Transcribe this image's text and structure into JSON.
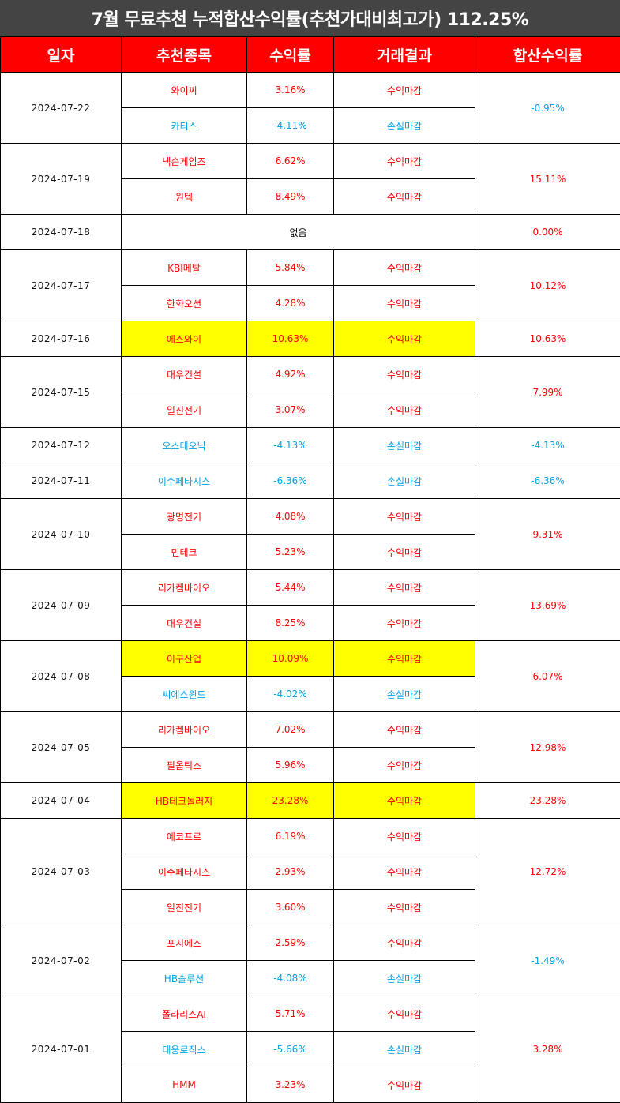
{
  "title": "7월 무료추천 누적합산수익률(추천가대비최고가) 112.25%",
  "headers": [
    "일자",
    "추천종목",
    "수익률",
    "거래결과",
    "합산수익률"
  ],
  "empty_label": "없음",
  "colors": {
    "title_bg": "#444444",
    "header_bg": "#ff0000",
    "gain": "#ff0000",
    "loss": "#00a2e8",
    "highlight": "#ffff00"
  },
  "groups": [
    {
      "date": "2024-07-22",
      "total": "-0.95%",
      "sign": "neg",
      "rows": [
        {
          "stock": "와이씨",
          "rate": "3.16%",
          "result": "수익마감",
          "sign": "pos",
          "highlight": false
        },
        {
          "stock": "카티스",
          "rate": "-4.11%",
          "result": "손실마감",
          "sign": "neg",
          "highlight": false
        }
      ]
    },
    {
      "date": "2024-07-19",
      "total": "15.11%",
      "sign": "pos",
      "rows": [
        {
          "stock": "넥슨게임즈",
          "rate": "6.62%",
          "result": "수익마감",
          "sign": "pos",
          "highlight": false
        },
        {
          "stock": "원텍",
          "rate": "8.49%",
          "result": "수익마감",
          "sign": "pos",
          "highlight": false
        }
      ]
    },
    {
      "date": "2024-07-18",
      "total": "0.00%",
      "sign": "pos",
      "rows": []
    },
    {
      "date": "2024-07-17",
      "total": "10.12%",
      "sign": "pos",
      "rows": [
        {
          "stock": "KBI메탈",
          "rate": "5.84%",
          "result": "수익마감",
          "sign": "pos",
          "highlight": false
        },
        {
          "stock": "한화오션",
          "rate": "4.28%",
          "result": "수익마감",
          "sign": "pos",
          "highlight": false
        }
      ]
    },
    {
      "date": "2024-07-16",
      "total": "10.63%",
      "sign": "pos",
      "rows": [
        {
          "stock": "에스와이",
          "rate": "10.63%",
          "result": "수익마감",
          "sign": "pos",
          "highlight": true
        }
      ]
    },
    {
      "date": "2024-07-15",
      "total": "7.99%",
      "sign": "pos",
      "rows": [
        {
          "stock": "대우건설",
          "rate": "4.92%",
          "result": "수익마감",
          "sign": "pos",
          "highlight": false
        },
        {
          "stock": "일진전기",
          "rate": "3.07%",
          "result": "수익마감",
          "sign": "pos",
          "highlight": false
        }
      ]
    },
    {
      "date": "2024-07-12",
      "total": "-4.13%",
      "sign": "neg",
      "rows": [
        {
          "stock": "오스테오닉",
          "rate": "-4.13%",
          "result": "손실마감",
          "sign": "neg",
          "highlight": false
        }
      ]
    },
    {
      "date": "2024-07-11",
      "total": "-6.36%",
      "sign": "neg",
      "rows": [
        {
          "stock": "이수페타시스",
          "rate": "-6.36%",
          "result": "손실마감",
          "sign": "neg",
          "highlight": false
        }
      ]
    },
    {
      "date": "2024-07-10",
      "total": "9.31%",
      "sign": "pos",
      "rows": [
        {
          "stock": "광명전기",
          "rate": "4.08%",
          "result": "수익마감",
          "sign": "pos",
          "highlight": false
        },
        {
          "stock": "민테크",
          "rate": "5.23%",
          "result": "수익마감",
          "sign": "pos",
          "highlight": false
        }
      ]
    },
    {
      "date": "2024-07-09",
      "total": "13.69%",
      "sign": "pos",
      "rows": [
        {
          "stock": "리가켐바이오",
          "rate": "5.44%",
          "result": "수익마감",
          "sign": "pos",
          "highlight": false
        },
        {
          "stock": "대우건설",
          "rate": "8.25%",
          "result": "수익마감",
          "sign": "pos",
          "highlight": false
        }
      ]
    },
    {
      "date": "2024-07-08",
      "total": "6.07%",
      "sign": "pos",
      "rows": [
        {
          "stock": "이구산업",
          "rate": "10.09%",
          "result": "수익마감",
          "sign": "pos",
          "highlight": true
        },
        {
          "stock": "씨에스윈드",
          "rate": "-4.02%",
          "result": "손실마감",
          "sign": "neg",
          "highlight": false
        }
      ]
    },
    {
      "date": "2024-07-05",
      "total": "12.98%",
      "sign": "pos",
      "rows": [
        {
          "stock": "리가켐바이오",
          "rate": "7.02%",
          "result": "수익마감",
          "sign": "pos",
          "highlight": false
        },
        {
          "stock": "필옵틱스",
          "rate": "5.96%",
          "result": "수익마감",
          "sign": "pos",
          "highlight": false
        }
      ]
    },
    {
      "date": "2024-07-04",
      "total": "23.28%",
      "sign": "pos",
      "rows": [
        {
          "stock": "HB테크놀러지",
          "rate": "23.28%",
          "result": "수익마감",
          "sign": "pos",
          "highlight": true
        }
      ]
    },
    {
      "date": "2024-07-03",
      "total": "12.72%",
      "sign": "pos",
      "rows": [
        {
          "stock": "에코프로",
          "rate": "6.19%",
          "result": "수익마감",
          "sign": "pos",
          "highlight": false
        },
        {
          "stock": "이수페타시스",
          "rate": "2.93%",
          "result": "수익마감",
          "sign": "pos",
          "highlight": false
        },
        {
          "stock": "일진전기",
          "rate": "3.60%",
          "result": "수익마감",
          "sign": "pos",
          "highlight": false
        }
      ]
    },
    {
      "date": "2024-07-02",
      "total": "-1.49%",
      "sign": "neg",
      "rows": [
        {
          "stock": "포시에스",
          "rate": "2.59%",
          "result": "수익마감",
          "sign": "pos",
          "highlight": false
        },
        {
          "stock": "HB솔루션",
          "rate": "-4.08%",
          "result": "손실마감",
          "sign": "neg",
          "highlight": false
        }
      ]
    },
    {
      "date": "2024-07-01",
      "total": "3.28%",
      "sign": "pos",
      "rows": [
        {
          "stock": "폴라리스AI",
          "rate": "5.71%",
          "result": "수익마감",
          "sign": "pos",
          "highlight": false
        },
        {
          "stock": "태웅로직스",
          "rate": "-5.66%",
          "result": "손실마감",
          "sign": "neg",
          "highlight": false
        },
        {
          "stock": "HMM",
          "rate": "3.23%",
          "result": "수익마감",
          "sign": "pos",
          "highlight": false
        }
      ]
    }
  ]
}
